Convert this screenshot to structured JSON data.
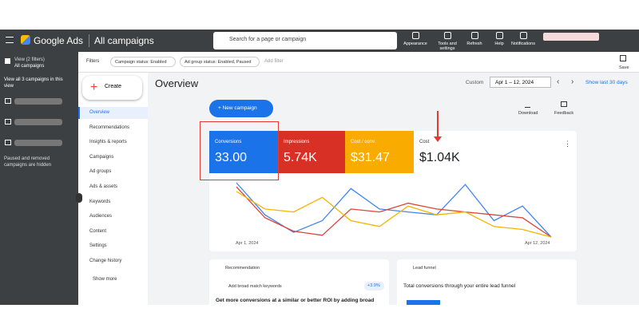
{
  "header": {
    "product": "Google Ads",
    "page": "All campaigns",
    "search_placeholder": "Search for a page or campaign",
    "tools": [
      "Appearance",
      "Tools and settings",
      "Refresh",
      "Help",
      "Notifications"
    ]
  },
  "sidebar": {
    "view_label": "View (2 filters)",
    "view_value": "All campaigns",
    "all_link": "View all 3 campaigns in this view",
    "hidden_note": "Paused and removed campaigns are hidden"
  },
  "filters": {
    "label": "Filters",
    "chips": [
      "Campaign status: Enabled",
      "Ad group status: Enabled, Paused"
    ],
    "add": "Add filter",
    "save": "Save"
  },
  "nav": {
    "create": "Create",
    "items": [
      "Overview",
      "Recommendations",
      "Insights & reports",
      "Campaigns",
      "Ad groups",
      "Ads & assets",
      "Keywords",
      "Audiences",
      "Content",
      "Settings",
      "Change history"
    ],
    "more": "Show more"
  },
  "overview": {
    "title": "Overview",
    "date_label": "Custom",
    "date_range": "Apr 1 – 12, 2024",
    "show_last": "Show last 30 days",
    "new_campaign": "New campaign",
    "download": "Download",
    "feedback": "Feedback",
    "metrics": [
      {
        "name": "Conversions",
        "value": "33.00",
        "color": "#1a73e8"
      },
      {
        "name": "Impressions",
        "value": "5.74K",
        "color": "#d93025"
      },
      {
        "name": "Cost / conv.",
        "value": "$31.47",
        "color": "#f9ab00"
      },
      {
        "name": "Cost",
        "value": "$1.04K",
        "color": "#ffffff"
      }
    ],
    "chart": {
      "x_start": "Apr 1, 2024",
      "x_end": "Apr 12, 2024",
      "series": [
        {
          "color": "#4285f4",
          "values": [
            95,
            40,
            10,
            30,
            85,
            50,
            45,
            40,
            92,
            30,
            55,
            2
          ]
        },
        {
          "color": "#db4437",
          "values": [
            88,
            35,
            12,
            5,
            50,
            45,
            60,
            50,
            45,
            40,
            35,
            2
          ]
        },
        {
          "color": "#f4b400",
          "values": [
            80,
            50,
            45,
            70,
            30,
            20,
            55,
            40,
            45,
            20,
            15,
            2
          ]
        }
      ]
    }
  },
  "cards": {
    "recommendation": {
      "title": "Recommendation",
      "item": "Add broad match keywords",
      "badge": "+3.9%",
      "text": "Get more conversions at a similar or better ROI by adding broad"
    },
    "lead_funnel": {
      "title": "Lead funnel",
      "text": "Total conversions through your entire lead funnel"
    }
  }
}
